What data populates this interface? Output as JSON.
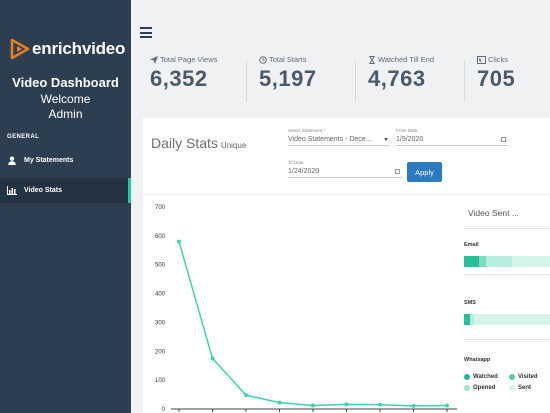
{
  "sidebar": {
    "logo_text": "enrichvideo",
    "title": "Video Dashboard",
    "welcome": "Welcome",
    "user": "Admin",
    "section": "GENERAL",
    "items": [
      {
        "label": "My Statements",
        "icon": "user-icon"
      },
      {
        "label": "Video Stats",
        "icon": "bar-chart-icon",
        "active": true
      }
    ]
  },
  "stats": [
    {
      "label": "Total Page Views",
      "value": "6,352",
      "icon": "send-icon"
    },
    {
      "label": "Total Starts",
      "value": "5,197",
      "icon": "clock-icon"
    },
    {
      "label": "Watched Till End",
      "value": "4,763",
      "icon": "hourglass-icon"
    },
    {
      "label": "Clicks",
      "value": "705",
      "icon": "cursor-box-icon"
    }
  ],
  "daily": {
    "title": "Daily Stats",
    "subtitle": "Unique",
    "statement_label": "Select Statement *",
    "statement_value": "Video Statements - Dece...",
    "from_label": "From Date",
    "from_value": "1/9/2020",
    "to_label": "To Date",
    "to_value": "1/24/2020",
    "apply": "Apply"
  },
  "chart_data": {
    "type": "line",
    "ylim": [
      0,
      700
    ],
    "yticks": [
      "700",
      "600",
      "500",
      "400",
      "300",
      "200",
      "100",
      "0"
    ],
    "values": [
      580,
      175,
      48,
      22,
      12,
      16,
      15,
      11,
      12
    ],
    "color": "#3fd0ae"
  },
  "video_sent": {
    "title": "Video Sent ...",
    "groups": [
      {
        "label": "Email",
        "segments": [
          {
            "frac": 0.18,
            "color": "#26bf99"
          },
          {
            "frac": 0.08,
            "color": "#7dddc3"
          },
          {
            "frac": 0.3,
            "color": "#b7eddf"
          }
        ]
      },
      {
        "label": "SMS",
        "segments": [
          {
            "frac": 0.07,
            "color": "#26bf99"
          },
          {
            "frac": 0.05,
            "color": "#b7eddf"
          }
        ]
      },
      {
        "label": "Whatsapp",
        "segments": []
      }
    ],
    "legend": [
      {
        "label": "Watched",
        "color": "#1fb58f"
      },
      {
        "label": "Visited",
        "color": "#54cba9"
      },
      {
        "label": "Opened",
        "color": "#9be4d0"
      },
      {
        "label": "Sent",
        "color": "#d4f3ea"
      }
    ]
  },
  "colors": {
    "sidebar": "#2c3e50",
    "accent": "#26c6a5",
    "button": "#2c7bc0"
  }
}
